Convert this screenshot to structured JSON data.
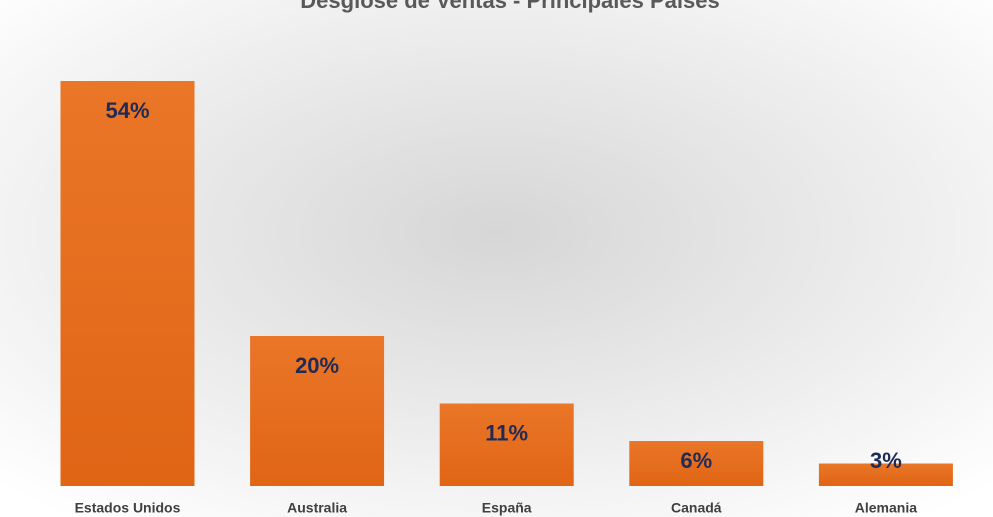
{
  "chart_data": {
    "type": "bar",
    "title": "Desglose de Ventas - Principales Países",
    "categories": [
      "Estados Unidos",
      "Australia",
      "España",
      "Canadá",
      "Alemania"
    ],
    "values": [
      54,
      20,
      11,
      6,
      3
    ],
    "value_labels": [
      "54%",
      "20%",
      "11%",
      "6%",
      "3%"
    ],
    "color": "#ea7628"
  }
}
